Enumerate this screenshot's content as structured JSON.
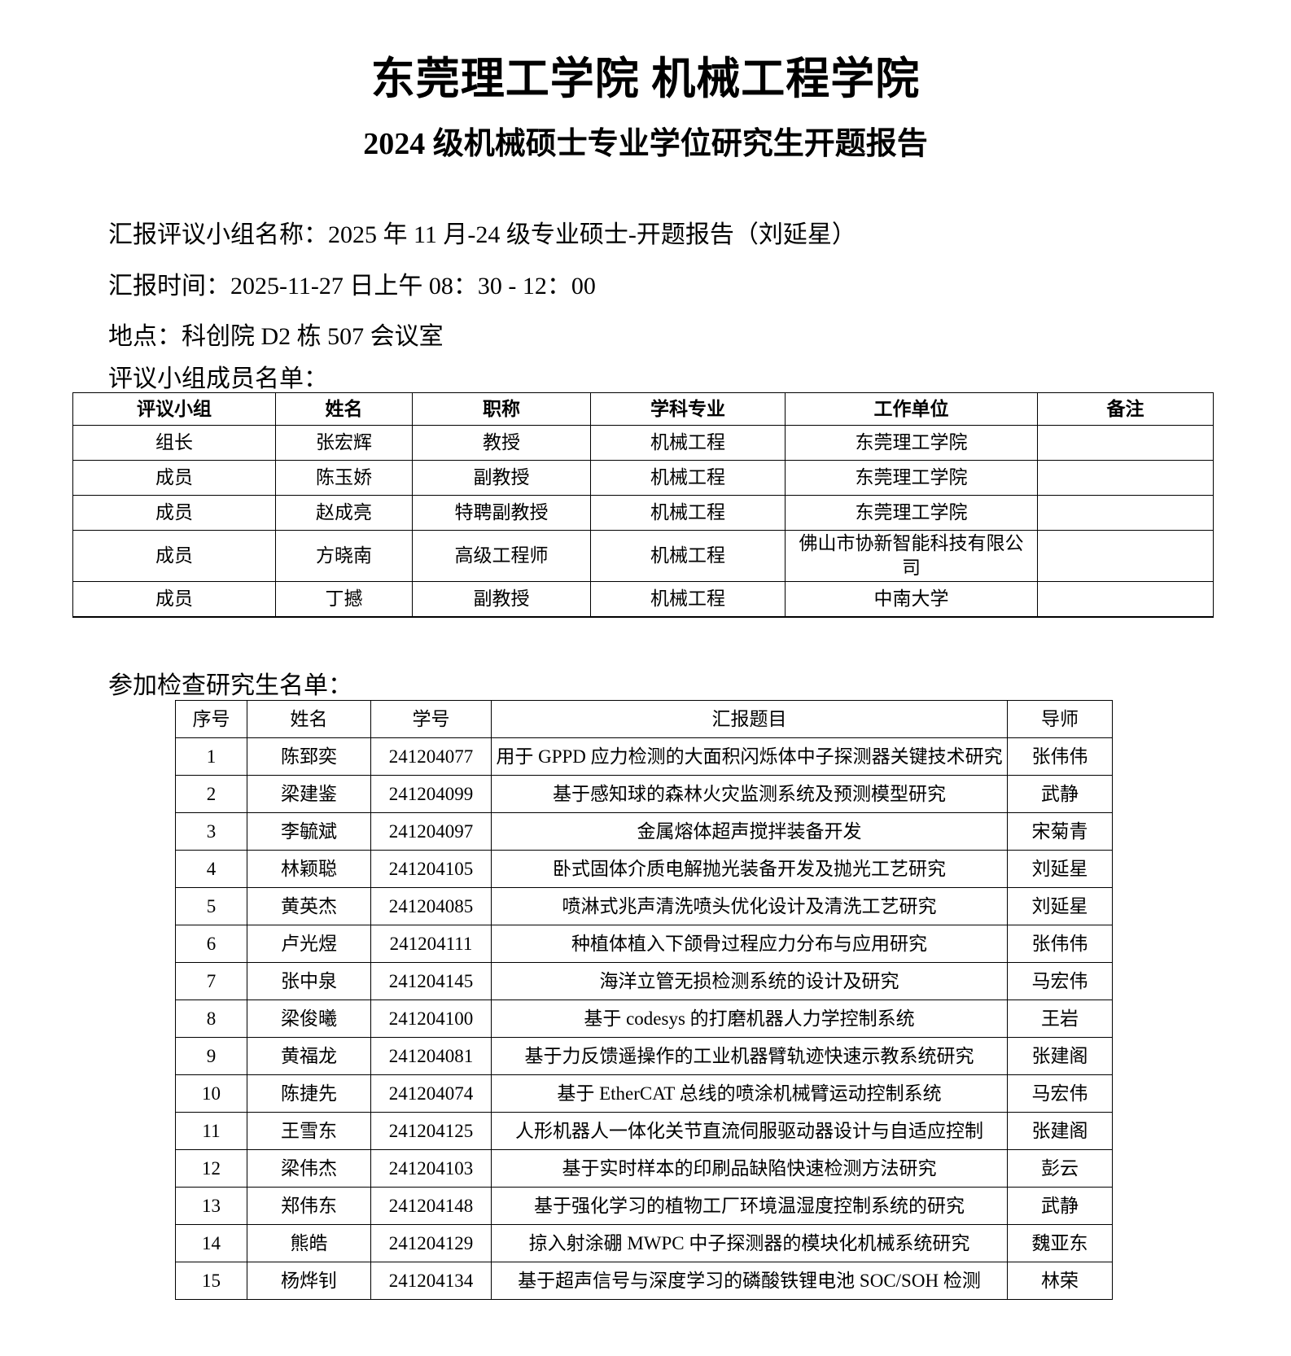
{
  "header": {
    "title": "东莞理工学院  机械工程学院",
    "subtitle": "2024 级机械硕士专业学位研究生开题报告"
  },
  "info": {
    "group_name": "汇报评议小组名称：2025 年 11 月-24 级专业硕士-开题报告（刘延星）",
    "time": "汇报时间：2025-11-27 日上午 08：30 - 12：00",
    "location": "地点：科创院 D2 栋 507 会议室",
    "panel_heading": "评议小组成员名单：",
    "students_heading": "参加检查研究生名单："
  },
  "panel": {
    "columns": [
      "评议小组",
      "姓名",
      "职称",
      "学科专业",
      "工作单位",
      "备注"
    ],
    "rows": [
      [
        "组长",
        "张宏辉",
        "教授",
        "机械工程",
        "东莞理工学院",
        ""
      ],
      [
        "成员",
        "陈玉娇",
        "副教授",
        "机械工程",
        "东莞理工学院",
        ""
      ],
      [
        "成员",
        "赵成亮",
        "特聘副教授",
        "机械工程",
        "东莞理工学院",
        ""
      ],
      [
        "成员",
        "方晓南",
        "高级工程师",
        "机械工程",
        "佛山市协新智能科技有限公司",
        ""
      ],
      [
        "成员",
        "丁撼",
        "副教授",
        "机械工程",
        "中南大学",
        ""
      ]
    ]
  },
  "students": {
    "columns": [
      "序号",
      "姓名",
      "学号",
      "汇报题目",
      "导师"
    ],
    "rows": [
      [
        "1",
        "陈郅奕",
        "241204077",
        "用于 GPPD 应力检测的大面积闪烁体中子探测器关键技术研究",
        "张伟伟"
      ],
      [
        "2",
        "梁建鉴",
        "241204099",
        "基于感知球的森林火灾监测系统及预测模型研究",
        "武静"
      ],
      [
        "3",
        "李毓斌",
        "241204097",
        "金属熔体超声搅拌装备开发",
        "宋菊青"
      ],
      [
        "4",
        "林颖聪",
        "241204105",
        "卧式固体介质电解抛光装备开发及抛光工艺研究",
        "刘延星"
      ],
      [
        "5",
        "黄英杰",
        "241204085",
        "喷淋式兆声清洗喷头优化设计及清洗工艺研究",
        "刘延星"
      ],
      [
        "6",
        "卢光煜",
        "241204111",
        "种植体植入下颌骨过程应力分布与应用研究",
        "张伟伟"
      ],
      [
        "7",
        "张中泉",
        "241204145",
        "海洋立管无损检测系统的设计及研究",
        "马宏伟"
      ],
      [
        "8",
        "梁俊曦",
        "241204100",
        "基于 codesys 的打磨机器人力学控制系统",
        "王岩"
      ],
      [
        "9",
        "黄福龙",
        "241204081",
        "基于力反馈遥操作的工业机器臂轨迹快速示教系统研究",
        "张建阁"
      ],
      [
        "10",
        "陈捷先",
        "241204074",
        "基于 EtherCAT 总线的喷涂机械臂运动控制系统",
        "马宏伟"
      ],
      [
        "11",
        "王雪东",
        "241204125",
        "人形机器人一体化关节直流伺服驱动器设计与自适应控制",
        "张建阁"
      ],
      [
        "12",
        "梁伟杰",
        "241204103",
        "基于实时样本的印刷品缺陷快速检测方法研究",
        "彭云"
      ],
      [
        "13",
        "郑伟东",
        "241204148",
        "基于强化学习的植物工厂环境温湿度控制系统的研究",
        "武静"
      ],
      [
        "14",
        "熊皓",
        "241204129",
        "掠入射涂硼 MWPC 中子探测器的模块化机械系统研究",
        "魏亚东"
      ],
      [
        "15",
        "杨烨钊",
        "241204134",
        "基于超声信号与深度学习的磷酸铁锂电池 SOC/SOH 检测",
        "林荣"
      ]
    ]
  }
}
